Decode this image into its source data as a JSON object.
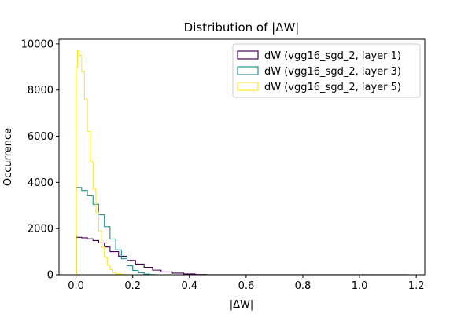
{
  "chart_data": {
    "type": "histogram-step",
    "title": "Distribution of |ΔW|",
    "xlabel": "|ΔW|",
    "ylabel": "Occurrence",
    "xlim": [
      -0.06,
      1.23
    ],
    "ylim": [
      0,
      10200
    ],
    "xticks": [
      0.0,
      0.2,
      0.4,
      0.6,
      0.8,
      1.0,
      1.2
    ],
    "xtick_labels": [
      "0.0",
      "0.2",
      "0.4",
      "0.6",
      "0.8",
      "1.0",
      "1.2"
    ],
    "yticks": [
      0,
      2000,
      4000,
      6000,
      8000,
      10000
    ],
    "ytick_labels": [
      "0",
      "2000",
      "4000",
      "6000",
      "8000",
      "10000"
    ],
    "legend_position": "top-right",
    "series": [
      {
        "name": "dW (vgg16_sgd_2, layer 1)",
        "color": "#440154",
        "points": [
          [
            0.0,
            0
          ],
          [
            0.0,
            1620
          ],
          [
            0.02,
            1600
          ],
          [
            0.04,
            1560
          ],
          [
            0.06,
            1480
          ],
          [
            0.08,
            1380
          ],
          [
            0.1,
            1200
          ],
          [
            0.12,
            1000
          ],
          [
            0.15,
            800
          ],
          [
            0.18,
            620
          ],
          [
            0.21,
            460
          ],
          [
            0.24,
            320
          ],
          [
            0.27,
            200
          ],
          [
            0.3,
            120
          ],
          [
            0.34,
            70
          ],
          [
            0.38,
            35
          ],
          [
            0.42,
            12
          ],
          [
            0.46,
            4
          ],
          [
            1.17,
            0
          ]
        ]
      },
      {
        "name": "dW (vgg16_sgd_2, layer 3)",
        "color": "#21918c",
        "points": [
          [
            0.0,
            0
          ],
          [
            0.0,
            3780
          ],
          [
            0.02,
            3650
          ],
          [
            0.04,
            3420
          ],
          [
            0.06,
            3050
          ],
          [
            0.08,
            2600
          ],
          [
            0.1,
            2080
          ],
          [
            0.12,
            1550
          ],
          [
            0.14,
            1080
          ],
          [
            0.16,
            690
          ],
          [
            0.18,
            390
          ],
          [
            0.2,
            190
          ],
          [
            0.22,
            85
          ],
          [
            0.24,
            30
          ],
          [
            0.26,
            8
          ],
          [
            0.28,
            0
          ]
        ]
      },
      {
        "name": "dW (vgg16_sgd_2, layer 5)",
        "color": "#fde725",
        "points": [
          [
            0.0,
            0
          ],
          [
            0.0,
            9000
          ],
          [
            0.005,
            9700
          ],
          [
            0.01,
            9500
          ],
          [
            0.02,
            8800
          ],
          [
            0.03,
            7600
          ],
          [
            0.04,
            6200
          ],
          [
            0.05,
            4900
          ],
          [
            0.06,
            3700
          ],
          [
            0.07,
            2700
          ],
          [
            0.08,
            1900
          ],
          [
            0.09,
            1200
          ],
          [
            0.1,
            750
          ],
          [
            0.11,
            420
          ],
          [
            0.12,
            220
          ],
          [
            0.13,
            100
          ],
          [
            0.14,
            40
          ],
          [
            0.16,
            10
          ],
          [
            0.18,
            0
          ]
        ]
      }
    ]
  }
}
